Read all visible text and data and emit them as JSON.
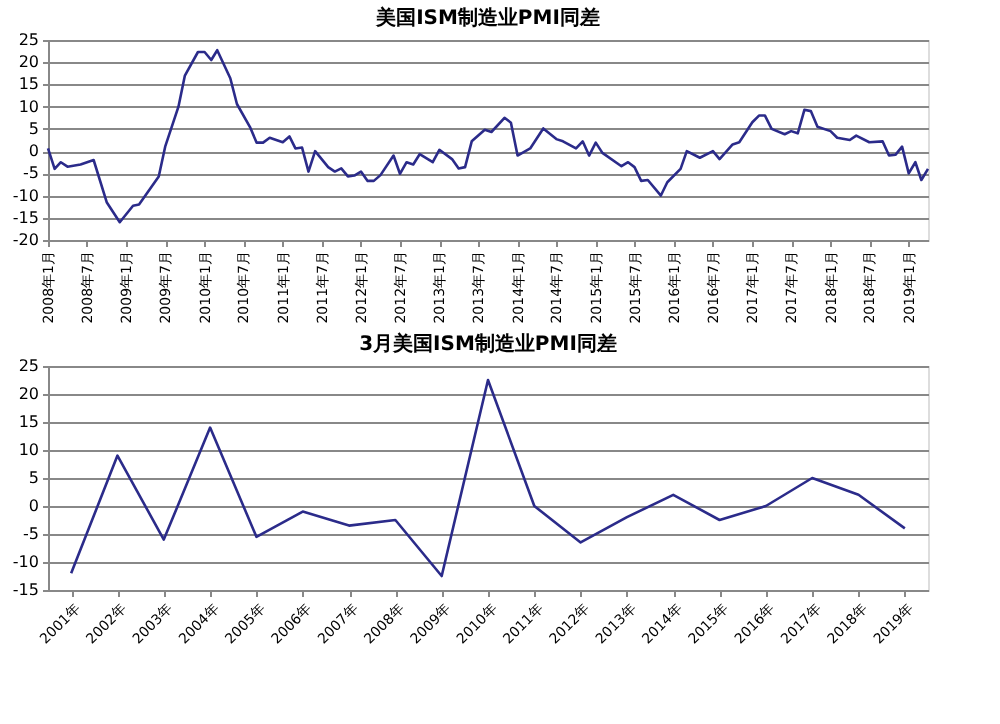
{
  "chart_data": [
    {
      "type": "line",
      "title": "美国ISM制造业PMI同差",
      "color": "#2b2b8a",
      "grid": "y",
      "x": [
        "2008-01",
        "2008-02",
        "2008-03",
        "2008-04",
        "2008-06",
        "2008-08",
        "2008-10",
        "2008-12",
        "2009-02",
        "2009-03",
        "2009-06",
        "2009-07",
        "2009-09",
        "2009-10",
        "2009-12",
        "2010-01",
        "2010-02",
        "2010-03",
        "2010-05",
        "2010-06",
        "2010-08",
        "2010-09",
        "2010-10",
        "2010-11",
        "2011-01",
        "2011-02",
        "2011-03",
        "2011-04",
        "2011-05",
        "2011-06",
        "2011-08",
        "2011-09",
        "2011-10",
        "2011-11",
        "2011-12",
        "2012-01",
        "2012-02",
        "2012-03",
        "2012-04",
        "2012-06",
        "2012-07",
        "2012-08",
        "2012-09",
        "2012-10",
        "2012-12",
        "2013-01",
        "2013-03",
        "2013-04",
        "2013-05",
        "2013-06",
        "2013-08",
        "2013-09",
        "2013-11",
        "2013-12",
        "2014-01",
        "2014-03",
        "2014-05",
        "2014-07",
        "2014-08",
        "2014-10",
        "2014-11",
        "2014-12",
        "2015-01",
        "2015-02",
        "2015-05",
        "2015-06",
        "2015-07",
        "2015-08",
        "2015-09",
        "2015-11",
        "2015-12",
        "2016-02",
        "2016-03",
        "2016-05",
        "2016-07",
        "2016-08",
        "2016-10",
        "2016-11",
        "2017-01",
        "2017-02",
        "2017-03",
        "2017-04",
        "2017-06",
        "2017-07",
        "2017-08",
        "2017-09",
        "2017-10",
        "2017-11",
        "2018-01",
        "2018-02",
        "2018-04",
        "2018-05",
        "2018-07",
        "2018-09",
        "2018-10",
        "2018-11",
        "2018-12",
        "2019-01",
        "2019-02",
        "2019-03",
        "2019-04"
      ],
      "values": [
        0.6,
        -4,
        -2.5,
        -3.5,
        -3,
        -2,
        -11.5,
        -16,
        -12.3,
        -12,
        -5.7,
        1,
        10,
        17,
        22.3,
        22.3,
        20.5,
        22.7,
        16.4,
        10.6,
        5.4,
        1.9,
        1.9,
        3,
        2,
        3.3,
        0.6,
        0.8,
        -4.6,
        0,
        -3.6,
        -4.6,
        -3.9,
        -5.7,
        -5.5,
        -4.6,
        -6.7,
        -6.7,
        -5.4,
        -1,
        -5.1,
        -2.5,
        -3,
        -0.7,
        -2.5,
        0.3,
        -1.8,
        -3.9,
        -3.6,
        2.2,
        4.8,
        4.3,
        7.5,
        6.4,
        -1,
        0.6,
        5.1,
        2.7,
        2.2,
        0.6,
        2.2,
        -1,
        1.9,
        -0.4,
        -3.4,
        -2.5,
        -3.6,
        -6.7,
        -6.5,
        -10,
        -7,
        -4,
        0,
        -1.5,
        0,
        -1.8,
        1.5,
        2,
        6.5,
        8,
        8,
        5,
        3.8,
        4.5,
        4,
        9.3,
        9,
        5.5,
        4.5,
        3,
        2.5,
        3.5,
        2,
        2.2,
        -1,
        -0.8,
        1,
        -5,
        -2.5,
        -6.5,
        -4
      ],
      "xlim": [
        "2008-01",
        "2019-04"
      ],
      "xticks": [
        {
          "value": "2008-01",
          "label": "2008年1月"
        },
        {
          "value": "2008-07",
          "label": "2008年7月"
        },
        {
          "value": "2009-01",
          "label": "2009年1月"
        },
        {
          "value": "2009-07",
          "label": "2009年7月"
        },
        {
          "value": "2010-01",
          "label": "2010年1月"
        },
        {
          "value": "2010-07",
          "label": "2010年7月"
        },
        {
          "value": "2011-01",
          "label": "2011年1月"
        },
        {
          "value": "2011-07",
          "label": "2011年7月"
        },
        {
          "value": "2012-01",
          "label": "2012年1月"
        },
        {
          "value": "2012-07",
          "label": "2012年7月"
        },
        {
          "value": "2013-01",
          "label": "2013年1月"
        },
        {
          "value": "2013-07",
          "label": "2013年7月"
        },
        {
          "value": "2014-01",
          "label": "2014年1月"
        },
        {
          "value": "2014-07",
          "label": "2014年7月"
        },
        {
          "value": "2015-01",
          "label": "2015年1月"
        },
        {
          "value": "2015-07",
          "label": "2015年7月"
        },
        {
          "value": "2016-01",
          "label": "2016年1月"
        },
        {
          "value": "2016-07",
          "label": "2016年7月"
        },
        {
          "value": "2017-01",
          "label": "2017年1月"
        },
        {
          "value": "2017-07",
          "label": "2017年7月"
        },
        {
          "value": "2018-01",
          "label": "2018年1月"
        },
        {
          "value": "2018-07",
          "label": "2018年7月"
        },
        {
          "value": "2019-01",
          "label": "2019年1月"
        }
      ],
      "ylim": [
        -20,
        25
      ],
      "yticks": [
        -20,
        -15,
        -10,
        -5,
        0,
        5,
        10,
        15,
        20,
        25
      ]
    },
    {
      "type": "line",
      "title": "3月美国ISM制造业PMI同差",
      "color": "#2b2b8a",
      "grid": "y",
      "categories": [
        "2001年",
        "2002年",
        "2003年",
        "2004年",
        "2005年",
        "2006年",
        "2007年",
        "2008年",
        "2009年",
        "2010年",
        "2011年",
        "2012年",
        "2013年",
        "2014年",
        "2015年",
        "2016年",
        "2017年",
        "2018年",
        "2019年"
      ],
      "values": [
        -12,
        9,
        -6,
        14,
        -5.5,
        -1,
        -3.5,
        -2.5,
        -12.5,
        22.5,
        0,
        -6.5,
        -2,
        2,
        -2.5,
        0,
        5,
        2,
        -4
      ],
      "ylim": [
        -15,
        25
      ],
      "yticks": [
        -15,
        -10,
        -5,
        0,
        5,
        10,
        15,
        20,
        25
      ]
    }
  ]
}
